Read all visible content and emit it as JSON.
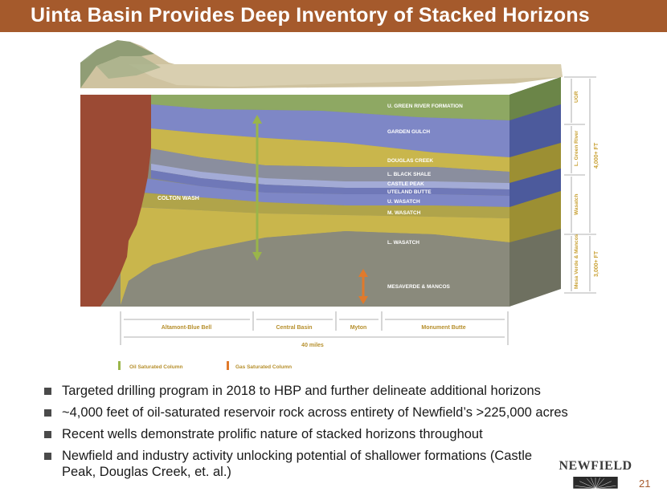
{
  "header": {
    "title": "Uinta Basin Provides Deep Inventory of Stacked Horizons"
  },
  "diagram": {
    "formations": {
      "u_green_river": "U. GREEN RIVER FORMATION",
      "garden_gulch": "GARDEN GULCH",
      "douglas_creek": "DOUGLAS CREEK",
      "l_black_shale": "L. BLACK SHALE",
      "castle_peak": "CASTLE PEAK",
      "uteland_butte": "UTELAND BUTTE",
      "u_wasatch": "U. WASATCH",
      "m_wasatch": "M. WASATCH",
      "l_wasatch": "L. WASATCH",
      "mesaverde_mancos": "MESAVERDE & MANCOS",
      "colton_wash": "COLTON WASH"
    },
    "side_labels": {
      "ugr": "UGR",
      "l_green_river": "L. Green River",
      "wasatch": "Wasatch",
      "mesa_verde_mancos": "Mesa Verde & Mancos",
      "thickness_upper": "4,000+ FT",
      "thickness_lower": "3,000+ FT"
    },
    "areas": {
      "altamont": "Altamont-Blue Bell",
      "central_basin": "Central Basin",
      "myton": "Myton",
      "monument_butte": "Monument Butte",
      "distance": "40 miles"
    },
    "legend": {
      "oil": "Oil Saturated Column",
      "gas": "Gas Saturated Column"
    },
    "colors": {
      "green_layer": "#8ea863",
      "blue_layer": "#7e87c6",
      "yellow_layer": "#c9b64c",
      "gray_layer": "#8a8a7c",
      "red_layer": "#9b4a34",
      "oil_arrow": "#9ab54a",
      "gas_arrow": "#e07a2c"
    }
  },
  "bullets": [
    "Targeted drilling program in 2018 to HBP and further delineate additional horizons",
    "~4,000 feet of oil-saturated reservoir rock across entirety of Newfield’s >225,000 acres",
    "Recent wells demonstrate prolific nature of stacked horizons throughout",
    "Newfield and industry activity unlocking potential of shallower formations (Castle Peak, Douglas Creek, et. al.)"
  ],
  "footer": {
    "logo_text": "NEWFIELD",
    "page_number": "21"
  }
}
